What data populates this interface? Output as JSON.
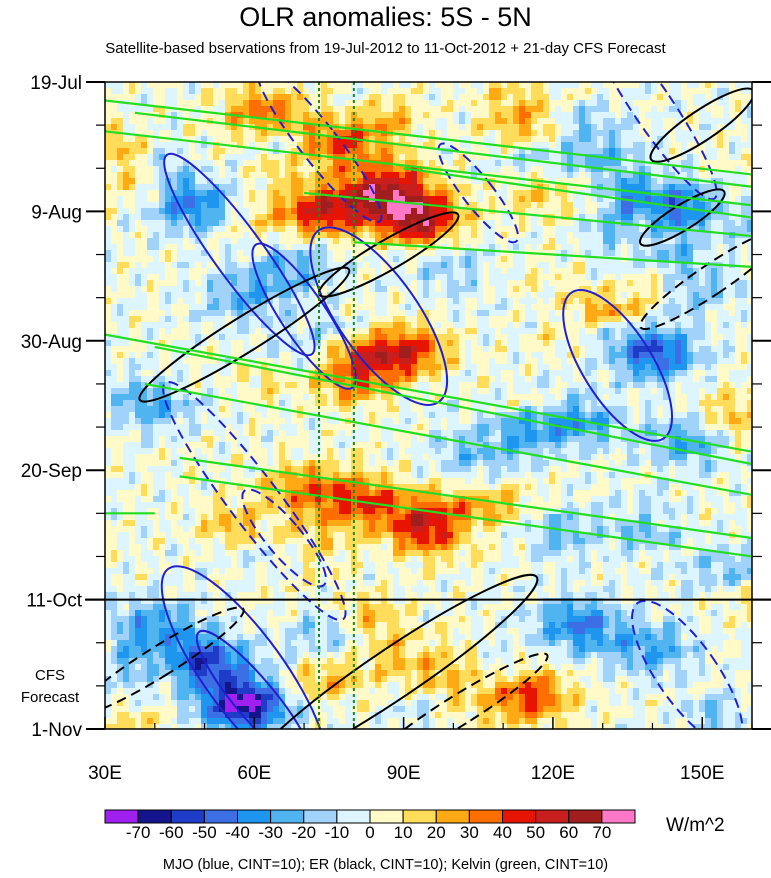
{
  "chart_data": {
    "type": "heatmap",
    "title": "OLR anomalies: 5S - 5N",
    "subtitle": "Satellite-based bservations from 19-Jul-2012 to 11-Oct-2012 + 21-day CFS Forecast",
    "x_axis": {
      "range": [
        30,
        160
      ],
      "ticks": [
        30,
        60,
        90,
        120,
        150
      ],
      "tick_labels": [
        "30E",
        "60E",
        "90E",
        "120E",
        "150E"
      ]
    },
    "y_axis": {
      "range_days": [
        0,
        105
      ],
      "ticks_days": [
        0,
        21,
        42,
        63,
        84,
        105
      ],
      "tick_labels": [
        "19-Jul",
        "9-Aug",
        "30-Aug",
        "20-Sep",
        "11-Oct",
        "1-Nov"
      ],
      "reversed": true
    },
    "forecast_label": [
      "CFS",
      "Forecast"
    ],
    "forecast_start_day": 84,
    "reference_lon_lines": [
      73,
      80
    ],
    "colorbar": {
      "levels": [
        -70,
        -60,
        -50,
        -40,
        -30,
        -20,
        -10,
        0,
        10,
        20,
        30,
        40,
        50,
        60,
        70
      ],
      "level_labels": [
        "-70",
        "-60",
        "-50",
        "-40",
        "-30",
        "-20",
        "-10",
        "0",
        "10",
        "20",
        "30",
        "40",
        "50",
        "60",
        "70"
      ],
      "colors": [
        "#a020f0",
        "#14148c",
        "#1e3cc8",
        "#3c6ee6",
        "#1e96f0",
        "#50b4f0",
        "#a0d2fa",
        "#dcf5ff",
        "#fffac8",
        "#ffdc5a",
        "#ffaa14",
        "#ff6e00",
        "#e61400",
        "#c81e1e",
        "#a01e1e",
        "#ff78c8"
      ],
      "units": "W/m^2"
    },
    "legend_note": "MJO (blue, CINT=10); ER (black, CINT=10); Kelvin (green, CINT=10)",
    "anomaly_features": [
      {
        "lon": 78,
        "day": 10,
        "value": 40
      },
      {
        "lon": 86,
        "day": 18,
        "value": 55
      },
      {
        "lon": 93,
        "day": 22,
        "value": 55
      },
      {
        "lon": 74,
        "day": 21,
        "value": 50
      },
      {
        "lon": 62,
        "day": 5,
        "value": 35
      },
      {
        "lon": 115,
        "day": 6,
        "value": 30
      },
      {
        "lon": 90,
        "day": 44,
        "value": 50
      },
      {
        "lon": 80,
        "day": 48,
        "value": 35
      },
      {
        "lon": 95,
        "day": 72,
        "value": 50
      },
      {
        "lon": 82,
        "day": 68,
        "value": 40
      },
      {
        "lon": 70,
        "day": 66,
        "value": 30
      },
      {
        "lon": 110,
        "day": 70,
        "value": 30
      },
      {
        "lon": 115,
        "day": 100,
        "value": 40
      },
      {
        "lon": 95,
        "day": 96,
        "value": 25
      },
      {
        "lon": 140,
        "day": 35,
        "value": 20
      },
      {
        "lon": 155,
        "day": 55,
        "value": 25
      },
      {
        "lon": 48,
        "day": 20,
        "value": -40
      },
      {
        "lon": 58,
        "day": 35,
        "value": -25
      },
      {
        "lon": 68,
        "day": 30,
        "value": -25
      },
      {
        "lon": 100,
        "day": 30,
        "value": -15
      },
      {
        "lon": 140,
        "day": 44,
        "value": -55
      },
      {
        "lon": 145,
        "day": 20,
        "value": -30
      },
      {
        "lon": 125,
        "day": 55,
        "value": -35
      },
      {
        "lon": 148,
        "day": 58,
        "value": -35
      },
      {
        "lon": 40,
        "day": 52,
        "value": -30
      },
      {
        "lon": 105,
        "day": 60,
        "value": -25
      },
      {
        "lon": 58,
        "day": 101,
        "value": -75
      },
      {
        "lon": 50,
        "day": 94,
        "value": -45
      },
      {
        "lon": 40,
        "day": 88,
        "value": -30
      },
      {
        "lon": 125,
        "day": 88,
        "value": -40
      },
      {
        "lon": 140,
        "day": 92,
        "value": -30
      },
      {
        "lon": 72,
        "day": 88,
        "value": -20
      },
      {
        "lon": 155,
        "day": 80,
        "value": -25
      },
      {
        "lon": 130,
        "day": 12,
        "value": -20
      }
    ],
    "mjo_contours": [
      {
        "lon": 57,
        "day": 28,
        "rx": 5,
        "ry": 20,
        "rot": -36,
        "dashed": false
      },
      {
        "lon": 70,
        "day": 38,
        "rx": 4.5,
        "ry": 14,
        "rot": -34,
        "dashed": false
      },
      {
        "lon": 85,
        "day": 38,
        "rx": 8,
        "ry": 17,
        "rot": -35,
        "dashed": false
      },
      {
        "lon": 133,
        "day": 46,
        "rx": 7,
        "ry": 14,
        "rot": -32,
        "dashed": false
      },
      {
        "lon": 58,
        "day": 96,
        "rx": 8,
        "ry": 21,
        "rot": -36,
        "dashed": false
      },
      {
        "lon": 60,
        "day": 100,
        "rx": 4,
        "ry": 14,
        "rot": -40,
        "dashed": false
      },
      {
        "lon": 73,
        "day": 10,
        "rx": 3.8,
        "ry": 16,
        "rot": -38,
        "dashed": true
      },
      {
        "lon": 60,
        "day": 68,
        "rx": 5,
        "ry": 24,
        "rot": -37,
        "dashed": true
      },
      {
        "lon": 66,
        "day": 74,
        "rx": 3.5,
        "ry": 10,
        "rot": -40,
        "dashed": true
      },
      {
        "lon": 140,
        "day": 4,
        "rx": 4,
        "ry": 18,
        "rot": -34,
        "dashed": true
      },
      {
        "lon": 105,
        "day": 18,
        "rx": 3,
        "ry": 10,
        "rot": -38,
        "dashed": true
      },
      {
        "lon": 147,
        "day": 96,
        "rx": 6,
        "ry": 14,
        "rot": -35,
        "dashed": true
      }
    ],
    "er_contours": [
      {
        "lon": 58,
        "day": 41,
        "rx": 3.5,
        "ry": 20,
        "rot": 58,
        "dashed": false
      },
      {
        "lon": 87,
        "day": 28,
        "rx": 3,
        "ry": 13,
        "rot": 60,
        "dashed": false
      },
      {
        "lon": 88,
        "day": 96,
        "rx": 5,
        "ry": 28,
        "rot": 56,
        "dashed": false
      },
      {
        "lon": 150,
        "day": 7,
        "rx": 3,
        "ry": 10,
        "rot": 56,
        "dashed": false
      },
      {
        "lon": 146,
        "day": 22,
        "rx": 2.5,
        "ry": 8,
        "rot": 58,
        "dashed": false
      },
      {
        "lon": 41,
        "day": 94,
        "rx": 3,
        "ry": 16,
        "rot": 58,
        "dashed": true
      },
      {
        "lon": 101,
        "day": 102,
        "rx": 3,
        "ry": 17,
        "rot": 58,
        "dashed": true
      },
      {
        "lon": 152,
        "day": 32,
        "rx": 3,
        "ry": 14,
        "rot": 56,
        "dashed": true
      }
    ],
    "kelvin_lines": [
      {
        "from": [
          30,
          3
        ],
        "to": [
          160,
          15
        ]
      },
      {
        "from": [
          36,
          5
        ],
        "to": [
          160,
          17
        ]
      },
      {
        "from": [
          30,
          8
        ],
        "to": [
          160,
          20
        ]
      },
      {
        "from": [
          90,
          14
        ],
        "to": [
          160,
          22
        ]
      },
      {
        "from": [
          70,
          18
        ],
        "to": [
          160,
          25
        ]
      },
      {
        "from": [
          80,
          26
        ],
        "to": [
          160,
          30
        ]
      },
      {
        "from": [
          30,
          41
        ],
        "to": [
          160,
          60
        ]
      },
      {
        "from": [
          40,
          43
        ],
        "to": [
          160,
          62
        ]
      },
      {
        "from": [
          38,
          49
        ],
        "to": [
          160,
          67
        ]
      },
      {
        "from": [
          45,
          61
        ],
        "to": [
          160,
          74
        ]
      },
      {
        "from": [
          45,
          64
        ],
        "to": [
          160,
          77
        ]
      },
      {
        "from": [
          30,
          70
        ],
        "to": [
          40,
          70
        ]
      }
    ]
  }
}
